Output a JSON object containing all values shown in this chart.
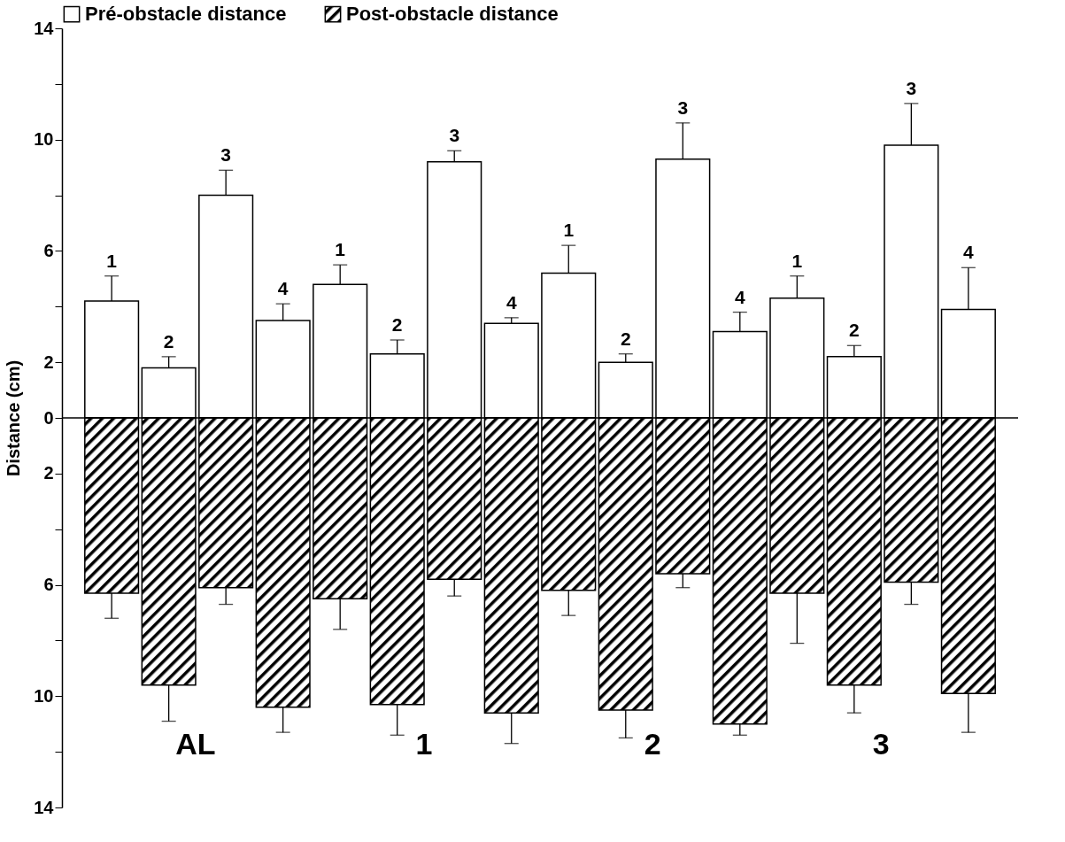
{
  "chart_data": {
    "type": "bar",
    "stacked": true,
    "ylabel": "Distance (cm)",
    "categories": [
      "1",
      "2",
      "3",
      "4",
      "1",
      "2",
      "3",
      "4",
      "1",
      "2",
      "3",
      "4",
      "1",
      "2",
      "3",
      "4"
    ],
    "annotations": [
      "AL",
      "1",
      "2",
      "3"
    ],
    "ylim": [
      -14,
      14
    ],
    "yticks": [
      {
        "value": -14,
        "label": "14"
      },
      {
        "value": -12,
        "label": null
      },
      {
        "value": -10,
        "label": "10"
      },
      {
        "value": -8,
        "label": null
      },
      {
        "value": -6,
        "label": "6"
      },
      {
        "value": -4,
        "label": null
      },
      {
        "value": -2,
        "label": "2"
      },
      0,
      2,
      {
        "value": 4,
        "label": null
      },
      6,
      {
        "value": 8,
        "label": null
      },
      10,
      {
        "value": 12,
        "label": null
      },
      14
    ],
    "legend": "top",
    "ref_lines": [
      {
        "axis": "y",
        "value": 0
      }
    ],
    "series": [
      {
        "name": "Pré-obstacle distance",
        "color": "#ffffff",
        "values": [
          4.2,
          1.8,
          8.0,
          3.5,
          4.8,
          2.3,
          9.2,
          3.4,
          5.2,
          2.0,
          9.3,
          3.1,
          4.3,
          2.2,
          9.8,
          3.9
        ],
        "errors": [
          [
            4.2,
            5.1
          ],
          [
            1.8,
            2.2
          ],
          [
            8.0,
            8.9
          ],
          [
            3.5,
            4.1
          ],
          [
            4.8,
            5.5
          ],
          [
            2.3,
            2.8
          ],
          [
            9.2,
            9.6
          ],
          [
            3.4,
            3.6
          ],
          [
            5.2,
            6.2
          ],
          [
            2.0,
            2.3
          ],
          [
            9.3,
            10.6
          ],
          [
            3.1,
            3.8
          ],
          [
            4.3,
            5.1
          ],
          [
            2.2,
            2.6
          ],
          [
            9.8,
            11.3
          ],
          [
            3.9,
            5.4
          ]
        ]
      },
      {
        "name": "Post-obstacle distance",
        "color": "#000000",
        "values": [
          -6.3,
          -9.6,
          -6.1,
          -10.4,
          -6.5,
          -10.3,
          -5.8,
          -10.6,
          -6.2,
          -10.5,
          -5.6,
          -11.0,
          -6.3,
          -9.6,
          -5.9,
          -9.9
        ],
        "errors": [
          [
            -7.2,
            -6.3
          ],
          [
            -10.9,
            -9.6
          ],
          [
            -6.7,
            -6.1
          ],
          [
            -11.3,
            -10.4
          ],
          [
            -7.6,
            -6.5
          ],
          [
            -11.4,
            -10.3
          ],
          [
            -6.4,
            -5.8
          ],
          [
            -11.7,
            -10.6
          ],
          [
            -7.1,
            -6.2
          ],
          [
            -11.5,
            -10.5
          ],
          [
            -6.1,
            -5.6
          ],
          [
            -11.4,
            -11.0
          ],
          [
            -8.1,
            -6.3
          ],
          [
            -10.6,
            -9.6
          ],
          [
            -6.7,
            -5.9
          ],
          [
            -11.3,
            -9.9
          ]
        ]
      }
    ]
  }
}
